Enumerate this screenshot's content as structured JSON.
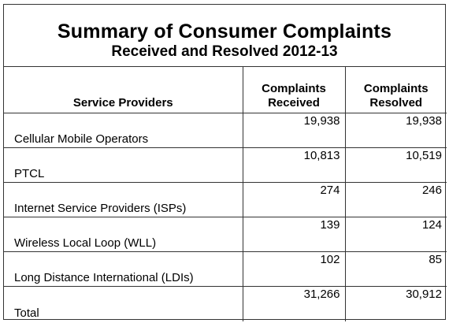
{
  "title": {
    "line1": "Summary of Consumer Complaints",
    "line2": "Received and Resolved 2012-13"
  },
  "headers": {
    "service_providers": "Service Providers",
    "received_line1": "Complaints",
    "received_line2": "Received",
    "resolved_line1": "Complaints",
    "resolved_line2": "Resolved"
  },
  "rows": [
    {
      "provider": "Cellular Mobile Operators",
      "received": "19,938",
      "resolved": "19,938"
    },
    {
      "provider": "PTCL",
      "received": "10,813",
      "resolved": "10,519"
    },
    {
      "provider": "Internet Service Providers (ISPs)",
      "received": "274",
      "resolved": "246"
    },
    {
      "provider": "Wireless Local Loop (WLL)",
      "received": "139",
      "resolved": "124"
    },
    {
      "provider": "Long Distance International (LDIs)",
      "received": "102",
      "resolved": "85"
    },
    {
      "provider": "Total",
      "received": "31,266",
      "resolved": "30,912"
    }
  ]
}
